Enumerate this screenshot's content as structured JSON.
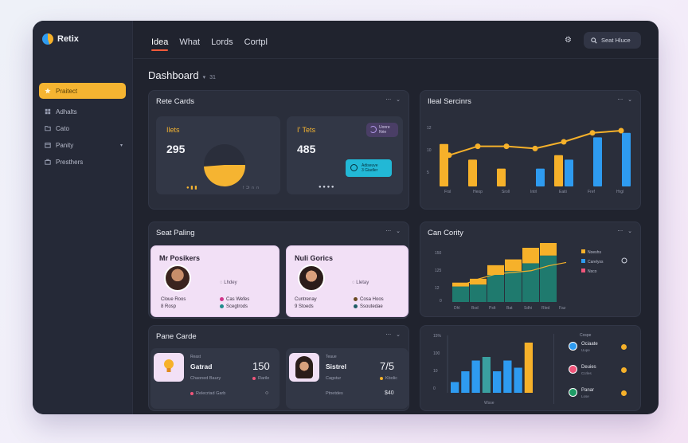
{
  "app": {
    "name": "Retix"
  },
  "topnav": {
    "tabs": [
      "Idea",
      "What",
      "Lords",
      "Cortpl"
    ],
    "search_label": "Seat Hluce"
  },
  "sidebar": {
    "items": [
      {
        "label": "Praitect",
        "icon": "star-icon"
      },
      {
        "label": "Adhalts",
        "icon": "grid-icon"
      },
      {
        "label": "Cato",
        "icon": "folder-icon"
      },
      {
        "label": "Panity",
        "icon": "calendar-icon"
      },
      {
        "label": "Presthers",
        "icon": "briefcase-icon"
      }
    ]
  },
  "page": {
    "title": "Dashboard",
    "subtitle": "31"
  },
  "rete_cards": {
    "title": "Rete Cards",
    "left": {
      "label": "Ilets",
      "value": "295",
      "footer": "↑ ⊃ ∩ ∩"
    },
    "right": {
      "label": "I' Tets",
      "value": "485",
      "badge1_line1": "Uonre",
      "badge1_line2": "Nrie",
      "badge2_line1": "Adiseuve",
      "badge2_line2": "3 Giadler"
    }
  },
  "ileal_sercinrs": {
    "title": "Ileal Sercinrs",
    "y_ticks": [
      "12",
      "10",
      "5"
    ],
    "x_labels": [
      "Frsl",
      "Heop",
      "Sroll",
      "Intrl",
      "Eaiti",
      "Fref",
      "Hrgl"
    ],
    "chart_data": {
      "type": "bar",
      "categories": [
        "Frsl",
        "Heop",
        "Sroll",
        "Intrl",
        "Eaiti",
        "Fref",
        "Hrgl"
      ],
      "series": [
        {
          "values": [
            9.5,
            6,
            4,
            0,
            7,
            0,
            0
          ],
          "color": "#f6b12a"
        },
        {
          "values": [
            0,
            0,
            0,
            4,
            6,
            11,
            12
          ],
          "color": "#2e9bf0"
        }
      ],
      "line": [
        7,
        9,
        9,
        8.5,
        10,
        12,
        12.5
      ],
      "ylim": [
        0,
        15
      ]
    }
  },
  "seat_paling": {
    "title": "Seat Paling",
    "p1": {
      "name": "Mr Posikers",
      "tag": "Lhdey",
      "a1": "Cloue Roos",
      "a2": "Cas Wefes",
      "b1": "8 Rosp",
      "b2": "Scegtrods"
    },
    "p2": {
      "name": "Nuli Gorics",
      "tag": "Lletay",
      "a1": "Cuntrenay",
      "a2": "Cosa Hoos",
      "b1": "9 Stoeds",
      "b2": "Ssoutedae"
    }
  },
  "can_cority": {
    "title": "Can Cority",
    "y_ticks": [
      "150",
      "125",
      "12"
    ],
    "x_labels": [
      "Dhl",
      "Bsd",
      "Pslt",
      "Bat",
      "Sdhi",
      "Rled",
      "Faz"
    ],
    "legend": [
      {
        "label": "Noeshs",
        "color": "#f6b12a"
      },
      {
        "label": "Carelyss",
        "color": "#2e9bf0"
      },
      {
        "label": "Nsco",
        "color": "#f0557a"
      }
    ],
    "chart_data": {
      "type": "bar",
      "categories": [
        "Dhl",
        "Bsd",
        "Pslt",
        "Bat",
        "Sdhi",
        "Rled",
        "Faz"
      ],
      "series": [
        {
          "name": "Noeshs",
          "values": [
            40,
            45,
            70,
            80,
            100,
            120,
            0
          ]
        },
        {
          "name": "Carelyss",
          "values": [
            10,
            15,
            25,
            30,
            40,
            45,
            0
          ]
        }
      ],
      "line": [
        50,
        70,
        85,
        90,
        95,
        110,
        120
      ]
    }
  },
  "pane_cards": {
    "title": "Pane Carde",
    "c1": {
      "label": "Reast",
      "name": "Gatrad",
      "value": "150",
      "meta1": "Chaoned Baury",
      "meta2": "Rarile",
      "meta3": "Relecrtad Garb"
    },
    "c2": {
      "label": "Teaue",
      "name": "Sistrel",
      "value": "7/5",
      "meta1": "Cagstur",
      "meta2": "Kbolic",
      "meta3": "Ptnetdes",
      "meta4": "$40"
    }
  },
  "bottom_chart": {
    "y_ticks": [
      "15%",
      "100",
      "10",
      "0"
    ],
    "x_label": "Wsse",
    "chart_data": {
      "type": "bar",
      "values": [
        3,
        6,
        9,
        10,
        6,
        9,
        7,
        14
      ],
      "colors": [
        "#2e9bf0",
        "#2e9bf0",
        "#2e9bf0",
        "#3aa0a0",
        "#2e9bf0",
        "#2e9bf0",
        "#2e9bf0",
        "#f6b12a"
      ],
      "ylim": [
        0,
        16
      ]
    }
  },
  "team": {
    "header": "Cospe",
    "members": [
      {
        "name": "Ociaate",
        "sub": "Uupe"
      },
      {
        "name": "Deuies",
        "sub": "Ccrles"
      },
      {
        "name": "Panar",
        "sub": "Lose"
      }
    ]
  }
}
